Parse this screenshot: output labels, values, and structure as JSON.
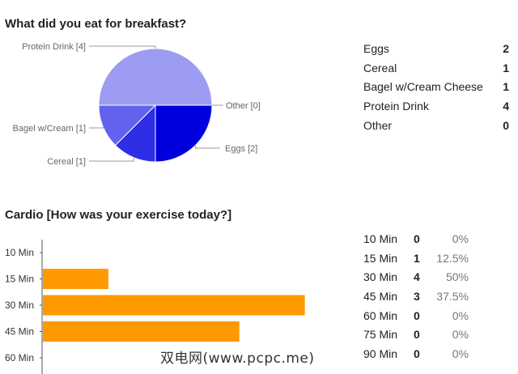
{
  "q1": {
    "title": "What did you eat for breakfast?",
    "rows": [
      {
        "label": "Eggs",
        "count": "2"
      },
      {
        "label": "Cereal",
        "count": "1"
      },
      {
        "label": "Bagel w/Cream Cheese",
        "count": "1"
      },
      {
        "label": "Protein Drink",
        "count": "4"
      },
      {
        "label": "Other",
        "count": "0"
      }
    ]
  },
  "q2": {
    "title": "Cardio [How was your exercise today?]",
    "rows": [
      {
        "label": "10 Min",
        "count": "0",
        "percent": "0%"
      },
      {
        "label": "15 Min",
        "count": "1",
        "percent": "12.5%"
      },
      {
        "label": "30 Min",
        "count": "4",
        "percent": "50%"
      },
      {
        "label": "45 Min",
        "count": "3",
        "percent": "37.5%"
      },
      {
        "label": "60 Min",
        "count": "0",
        "percent": "0%"
      },
      {
        "label": "75 Min",
        "count": "0",
        "percent": "0%"
      },
      {
        "label": "90 Min",
        "count": "0",
        "percent": "0%"
      }
    ]
  },
  "watermark": "双电网(www.pcpc.me)",
  "chart_data": [
    {
      "type": "pie",
      "title": "What did you eat for breakfast?",
      "slices": [
        {
          "label": "Eggs [2]",
          "value": 2,
          "color": "#0000dd"
        },
        {
          "label": "Cereal [1]",
          "value": 1,
          "color": "#2e2ee6"
        },
        {
          "label": "Bagel w/Cream [1]",
          "value": 1,
          "color": "#6262ee"
        },
        {
          "label": "Protein Drink [4]",
          "value": 4,
          "color": "#9c9cf2"
        },
        {
          "label": "Other [0]",
          "value": 0,
          "color": "#c8c8f8"
        }
      ]
    },
    {
      "type": "bar",
      "orientation": "horizontal",
      "title": "Cardio [How was your exercise today?]",
      "categories": [
        "10 Min",
        "15 Min",
        "30 Min",
        "45 Min",
        "60 Min"
      ],
      "values": [
        0,
        1,
        4,
        3,
        0
      ],
      "color": "#ff9900",
      "xlim": [
        0,
        4.5
      ]
    }
  ]
}
